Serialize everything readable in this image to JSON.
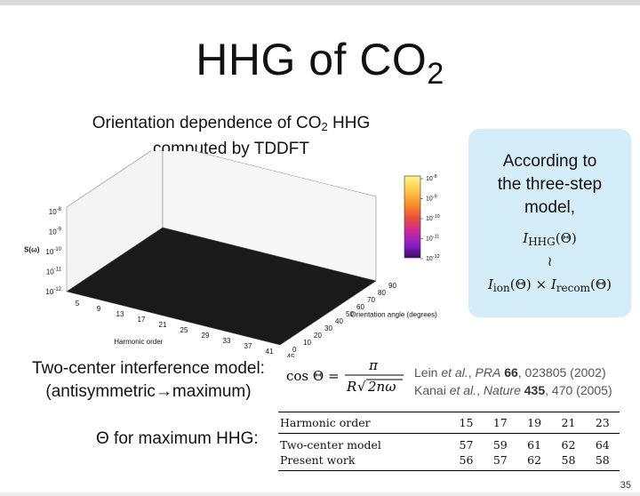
{
  "slide": {
    "title_main": "HHG of CO",
    "title_sub": "2",
    "page_number": "35"
  },
  "figure": {
    "caption_line1_a": "Orientation dependence of CO",
    "caption_line1_sub": "2",
    "caption_line1_b": " HHG",
    "caption_line2": "computed by TDDFT"
  },
  "chart_data": {
    "type": "surface3d",
    "zlabel": "S(ω)",
    "xlabel": "Harmonic order",
    "ylabel": "Orientation angle (degrees)",
    "z_ticks": [
      "10-8",
      "10-9",
      "10-10",
      "10-11",
      "10-12"
    ],
    "x_ticks": [
      "5",
      "9",
      "13",
      "17",
      "21",
      "25",
      "29",
      "33",
      "37",
      "41",
      "45"
    ],
    "y_ticks": [
      "0",
      "10",
      "20",
      "30",
      "40",
      "50",
      "60",
      "70",
      "80",
      "90"
    ],
    "colorbar_ticks": [
      "10-8",
      "10-9",
      "10-10",
      "10-11",
      "10-12"
    ],
    "colormap": [
      "#000000",
      "#3d0a6b",
      "#8b1ec8",
      "#c52a9b",
      "#e84c3d",
      "#f7892a",
      "#fcc84a",
      "#fff48a"
    ],
    "zlim": [
      "10-12",
      "10-8"
    ],
    "xlim": [
      5,
      45
    ],
    "ylim": [
      0,
      90
    ]
  },
  "three_step": {
    "line1": "According to",
    "line2": "the three-step",
    "line3": "model,",
    "eq1_var": "I",
    "eq1_sub": "HHG",
    "eq1_arg": "(Θ)",
    "approx": "≀",
    "eq2": "I",
    "eq2_sub": "ion",
    "eq2_arg": "(Θ)",
    "times": "×",
    "eq3": "I",
    "eq3_sub": "recom",
    "eq3_arg": "(Θ)",
    "bg": "#d5ecf9"
  },
  "interference": {
    "line1": "Two-center interference model:",
    "line2_a": "(antisymmetric",
    "line2_arrow": "→",
    "line2_b": "maximum)",
    "eq_lhs": "cos Θ =",
    "eq_num": "π",
    "eq_den_R": "R",
    "eq_den_sqrt": "√",
    "eq_den_rad": "2nω"
  },
  "references": {
    "ref1_a": "Lein ",
    "ref1_etal": "et al.",
    "ref1_b": ", ",
    "ref1_journal": "PRA",
    "ref1_vol": "66",
    "ref1_c": ", 023805 (2002)",
    "ref2_a": "Kanai ",
    "ref2_etal": "et al.",
    "ref2_b": ", ",
    "ref2_journal": "Nature",
    "ref2_vol": "435",
    "ref2_c": ", 470 (2005)"
  },
  "theta_label": "Θ for maximum HHG:",
  "table": {
    "header": [
      "Harmonic order",
      "15",
      "17",
      "19",
      "21",
      "23"
    ],
    "rows": [
      [
        "Two-center model",
        "57",
        "59",
        "61",
        "62",
        "64"
      ],
      [
        "Present work",
        "56",
        "57",
        "62",
        "58",
        "58"
      ]
    ]
  }
}
